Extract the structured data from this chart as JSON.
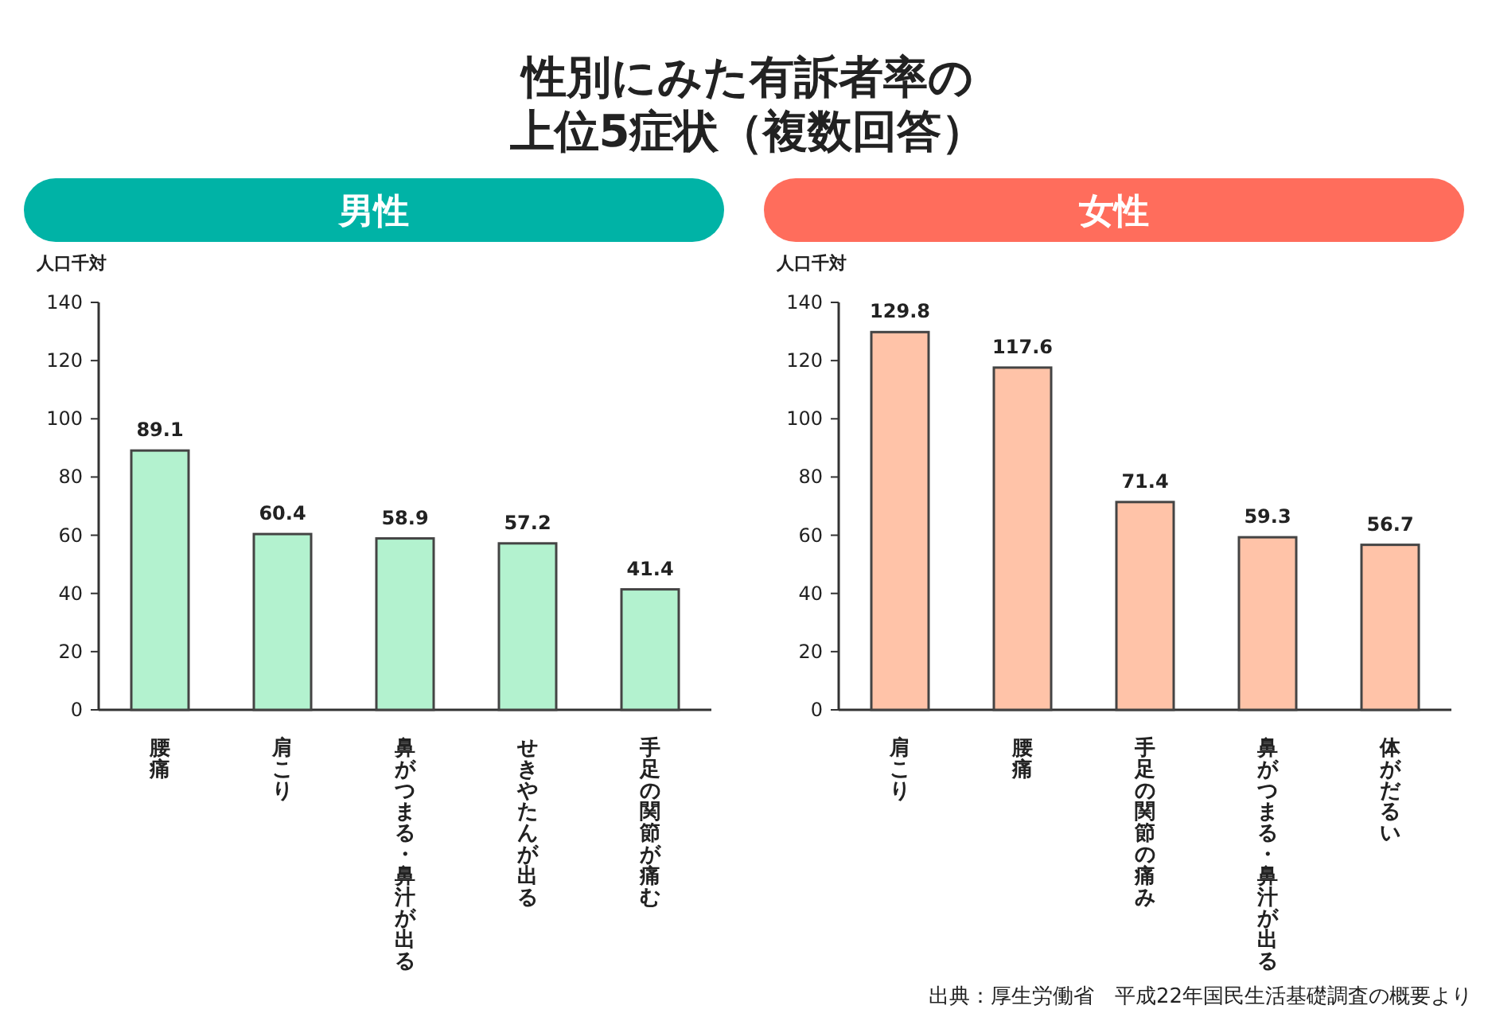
{
  "chart_data": [
    {
      "type": "bar",
      "title": "性別にみた有訴者率の上位5症状（複数回答）",
      "subtitle": "男性",
      "ylabel": "人口千対",
      "categories": [
        "腰痛",
        "肩こり",
        "鼻がつまる・鼻汁が出る",
        "せきやたんが出る",
        "手足の関節が痛む"
      ],
      "series": [
        {
          "color": "#b3f2cf",
          "values": [
            89.1,
            60.4,
            58.9,
            57.2,
            41.4
          ]
        }
      ],
      "ylim": [
        0,
        140
      ],
      "yticks": [
        0,
        20,
        40,
        60,
        80,
        100,
        120,
        140
      ],
      "data_labels": true,
      "grid": false
    },
    {
      "type": "bar",
      "subtitle": "女性",
      "ylabel": "人口千対",
      "categories": [
        "肩こり",
        "腰痛",
        "手足の関節の痛み",
        "鼻がつまる・鼻汁が出る",
        "体がだるい"
      ],
      "series": [
        {
          "color": "#ffc3a8",
          "values": [
            129.8,
            117.6,
            71.4,
            59.3,
            56.7
          ]
        }
      ],
      "ylim": [
        0,
        140
      ],
      "yticks": [
        0,
        20,
        40,
        60,
        80,
        100,
        120,
        140
      ],
      "data_labels": true,
      "grid": false,
      "annotations": [
        "出典：厚生労働省　平成22年国民生活基礎調査の概要より"
      ]
    }
  ]
}
